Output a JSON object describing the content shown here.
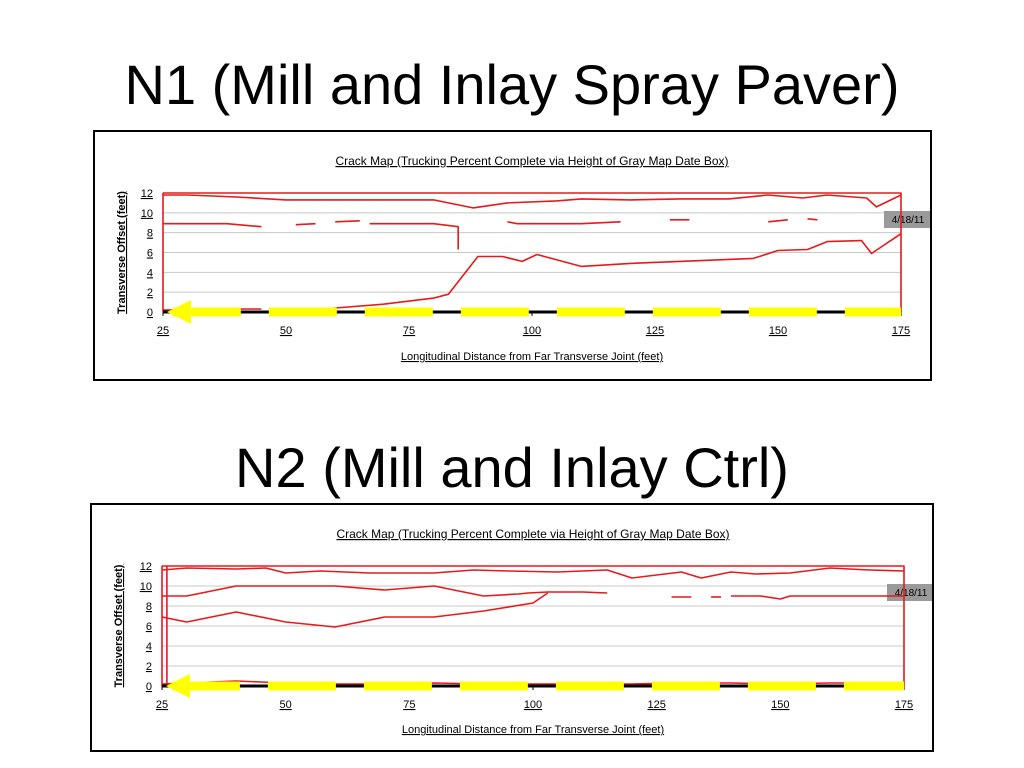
{
  "slide": {
    "title_1": "N1 (Mill and Inlay Spray Paver)",
    "title_2": "N2 (Mill and Inlay Ctrl)"
  },
  "colors": {
    "crack": "#e8191b",
    "marker": "#ffff00",
    "date_box": "#9a9a9a",
    "axis": "#000000",
    "grid": "#c8c8c8"
  },
  "chart_data": [
    {
      "type": "line",
      "title": "Crack Map (Trucking Percent Complete via Height of Gray Map Date Box)",
      "xlabel": "Longitudinal Distance from Far Transverse Joint (feet)",
      "ylabel": "Transverse Offset (feet)",
      "xlim": [
        25,
        175
      ],
      "ylim": [
        0,
        12
      ],
      "x_ticks": [
        "25",
        "50",
        "75",
        "100",
        "125",
        "150",
        "175"
      ],
      "y_ticks": [
        "0",
        "2",
        "4",
        "6",
        "8",
        "10",
        "12"
      ],
      "grid": true,
      "date_box": {
        "label": "4/18/11",
        "level": 1.0
      },
      "marker_line": {
        "y": 0,
        "x_from": 27,
        "x_to": 175
      },
      "series": [
        {
          "points": [
            [
              25,
              12
            ],
            [
              25,
              0
            ],
            [
              175,
              0
            ],
            [
              175,
              12
            ],
            [
              25,
              12
            ]
          ]
        },
        {
          "points": [
            [
              25,
              11.8
            ],
            [
              30,
              11.8
            ],
            [
              40,
              11.6
            ],
            [
              50,
              11.3
            ],
            [
              60,
              11.3
            ],
            [
              70,
              11.3
            ],
            [
              80,
              11.3
            ],
            [
              88,
              10.5
            ],
            [
              95,
              11
            ],
            [
              105,
              11.2
            ],
            [
              110,
              11.4
            ],
            [
              120,
              11.3
            ],
            [
              130,
              11.4
            ],
            [
              140,
              11.4
            ],
            [
              148,
              11.8
            ],
            [
              155,
              11.5
            ],
            [
              160,
              11.8
            ],
            [
              168,
              11.5
            ],
            [
              170,
              10.6
            ],
            [
              175,
              11.8
            ]
          ]
        },
        {
          "points": [
            [
              25,
              8.9
            ],
            [
              38,
              8.9
            ],
            [
              45,
              8.6
            ]
          ]
        },
        {
          "points": [
            [
              52,
              8.8
            ],
            [
              56,
              8.9
            ]
          ]
        },
        {
          "points": [
            [
              60,
              9.1
            ],
            [
              65,
              9.2
            ]
          ]
        },
        {
          "points": [
            [
              67,
              8.9
            ],
            [
              80,
              8.9
            ],
            [
              85,
              8.6
            ],
            [
              85,
              6.3
            ]
          ]
        },
        {
          "points": [
            [
              95,
              9.1
            ],
            [
              97,
              8.9
            ],
            [
              110,
              8.9
            ],
            [
              118,
              9.1
            ]
          ]
        },
        {
          "points": [
            [
              128,
              9.3
            ],
            [
              132,
              9.3
            ]
          ]
        },
        {
          "points": [
            [
              148,
              9.1
            ],
            [
              152,
              9.3
            ]
          ]
        },
        {
          "points": [
            [
              156,
              9.4
            ],
            [
              158,
              9.3
            ]
          ]
        },
        {
          "points": [
            [
              25,
              0.2
            ],
            [
              42,
              0.3
            ],
            [
              45,
              0.3
            ]
          ]
        },
        {
          "points": [
            [
              55,
              0.2
            ],
            [
              60,
              0.4
            ],
            [
              70,
              0.8
            ],
            [
              80,
              1.4
            ],
            [
              83,
              1.8
            ],
            [
              89,
              5.6
            ],
            [
              94,
              5.6
            ],
            [
              98,
              5.1
            ],
            [
              101,
              5.8
            ],
            [
              110,
              4.6
            ],
            [
              120,
              4.9
            ],
            [
              130,
              5.1
            ],
            [
              140,
              5.3
            ],
            [
              145,
              5.4
            ],
            [
              150,
              6.2
            ],
            [
              156,
              6.3
            ],
            [
              160,
              7.1
            ],
            [
              167,
              7.2
            ],
            [
              169,
              5.9
            ],
            [
              175,
              7.9
            ]
          ]
        }
      ]
    },
    {
      "type": "line",
      "title": "Crack Map (Trucking Percent Complete via Height of Gray Map Date Box)",
      "xlabel": "Longitudinal Distance from Far Transverse Joint (feet)",
      "ylabel": "Transverse Offset (feet)",
      "xlim": [
        25,
        175
      ],
      "ylim": [
        0,
        12
      ],
      "x_ticks": [
        "25",
        "50",
        "75",
        "100",
        "125",
        "150",
        "175"
      ],
      "y_ticks": [
        "0",
        "2",
        "4",
        "6",
        "8",
        "10",
        "12"
      ],
      "grid": true,
      "date_box": {
        "label": "4/18/11",
        "level": 1.0
      },
      "marker_line": {
        "y": 0,
        "x_from": 27,
        "x_to": 175
      },
      "series": [
        {
          "points": [
            [
              25,
              12
            ],
            [
              25,
              0
            ],
            [
              175,
              0
            ],
            [
              175,
              12
            ],
            [
              25,
              12
            ]
          ]
        },
        {
          "points": [
            [
              26,
              0
            ],
            [
              26,
              12
            ]
          ]
        },
        {
          "points": [
            [
              25,
              11.6
            ],
            [
              30,
              11.8
            ],
            [
              40,
              11.7
            ],
            [
              46,
              11.8
            ],
            [
              50,
              11.3
            ],
            [
              57,
              11.5
            ],
            [
              67,
              11.3
            ],
            [
              72,
              11.3
            ],
            [
              80,
              11.3
            ],
            [
              88,
              11.6
            ],
            [
              95,
              11.5
            ],
            [
              105,
              11.4
            ],
            [
              115,
              11.6
            ],
            [
              120,
              10.8
            ],
            [
              130,
              11.4
            ],
            [
              134,
              10.8
            ],
            [
              140,
              11.4
            ],
            [
              145,
              11.2
            ],
            [
              152,
              11.3
            ],
            [
              160,
              11.8
            ],
            [
              168,
              11.6
            ],
            [
              175,
              11.5
            ]
          ]
        },
        {
          "points": [
            [
              25,
              9
            ],
            [
              30,
              9
            ],
            [
              40,
              10
            ],
            [
              60,
              10
            ],
            [
              70,
              9.6
            ],
            [
              80,
              10
            ],
            [
              90,
              9
            ],
            [
              97,
              9.2
            ],
            [
              99,
              9.3
            ],
            [
              103,
              9.4
            ],
            [
              110,
              9.4
            ],
            [
              115,
              9.3
            ]
          ]
        },
        {
          "points": [
            [
              128,
              8.9
            ],
            [
              132,
              8.9
            ]
          ]
        },
        {
          "points": [
            [
              136,
              8.9
            ],
            [
              138,
              8.9
            ]
          ]
        },
        {
          "points": [
            [
              140,
              9
            ],
            [
              146,
              9
            ],
            [
              150,
              8.7
            ],
            [
              152,
              9
            ],
            [
              160,
              9
            ],
            [
              170,
              9
            ],
            [
              175,
              9
            ]
          ]
        },
        {
          "points": [
            [
              25,
              6.9
            ],
            [
              30,
              6.4
            ],
            [
              40,
              7.4
            ],
            [
              50,
              6.4
            ],
            [
              60,
              5.9
            ],
            [
              70,
              6.9
            ],
            [
              80,
              6.9
            ],
            [
              90,
              7.5
            ],
            [
              100,
              8.3
            ],
            [
              103,
              9.3
            ]
          ]
        },
        {
          "points": [
            [
              25,
              0.2
            ],
            [
              30,
              0.3
            ],
            [
              40,
              0.5
            ],
            [
              45,
              0.4
            ],
            [
              50,
              0.3
            ],
            [
              60,
              0.2
            ],
            [
              70,
              0.2
            ],
            [
              80,
              0.3
            ],
            [
              90,
              0.2
            ],
            [
              100,
              0.2
            ],
            [
              110,
              0.2
            ],
            [
              120,
              0.2
            ],
            [
              130,
              0.3
            ],
            [
              140,
              0.3
            ],
            [
              150,
              0.2
            ],
            [
              160,
              0.3
            ],
            [
              170,
              0.3
            ],
            [
              175,
              0.2
            ]
          ]
        }
      ]
    }
  ]
}
